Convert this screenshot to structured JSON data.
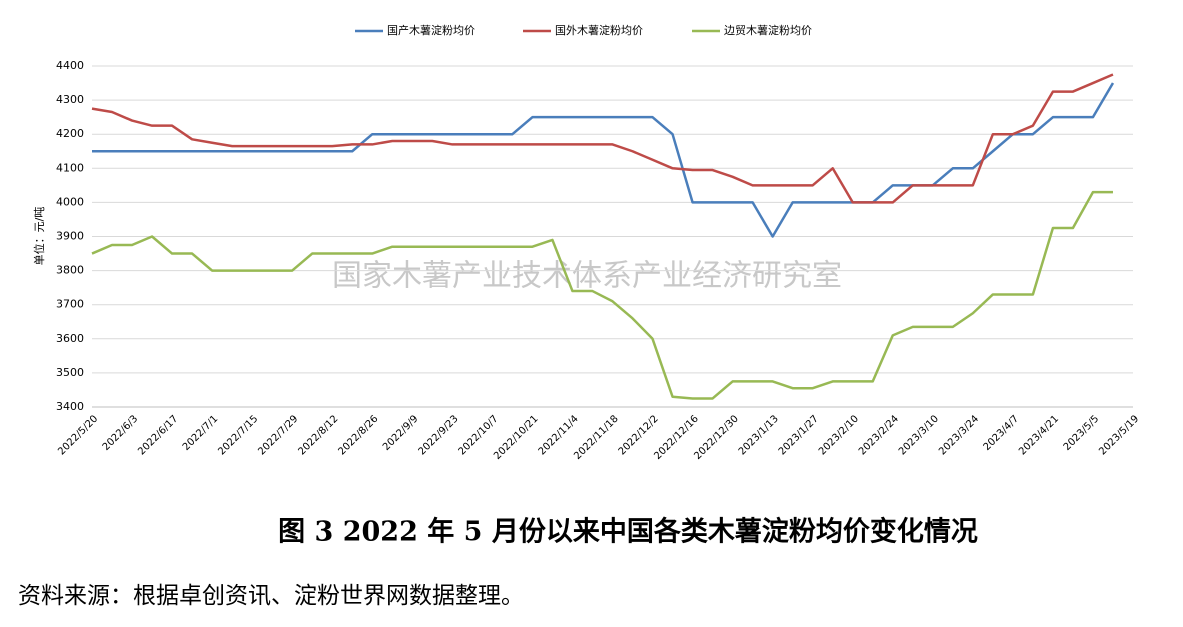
{
  "chart_data": {
    "type": "line",
    "ylabel": "单位：元/吨",
    "watermark": "国家木薯产业技术体系产业经济研究室",
    "caption": "图 3   2022 年 5 月份以来中国各类木薯淀粉均价变化情况",
    "source": "资料来源：根据卓创资讯、淀粉世界网数据整理。",
    "categories": [
      "2022/5/20",
      null,
      "2022/6/3",
      null,
      "2022/6/17",
      null,
      "2022/7/1",
      null,
      "2022/7/15",
      null,
      "2022/7/29",
      null,
      "2022/8/12",
      null,
      "2022/8/26",
      null,
      "2022/9/9",
      null,
      "2022/9/23",
      null,
      "2022/10/7",
      null,
      "2022/10/21",
      null,
      "2022/11/4",
      null,
      "2022/11/18",
      null,
      "2022/12/2",
      null,
      "2022/12/16",
      null,
      "2022/12/30",
      null,
      "2023/1/13",
      null,
      "2023/1/27",
      null,
      "2023/2/10",
      null,
      "2023/2/24",
      null,
      "2023/3/10",
      null,
      "2023/3/24",
      null,
      "2023/4/7",
      null,
      "2023/4/21",
      null,
      "2023/5/5",
      null,
      "2023/5/19"
    ],
    "series": [
      {
        "name": "国产木薯淀粉均价",
        "color": "#4a7ebb",
        "values": [
          4150,
          4150,
          4150,
          4150,
          4150,
          4150,
          4150,
          4150,
          4150,
          4150,
          4150,
          4150,
          4150,
          4150,
          4200,
          4200,
          4200,
          4200,
          4200,
          4200,
          4200,
          4200,
          4250,
          4250,
          4250,
          4250,
          4250,
          4250,
          4250,
          4200,
          4000,
          4000,
          4000,
          4000,
          3900,
          4000,
          4000,
          4000,
          4000,
          4000,
          4050,
          4050,
          4050,
          4100,
          4100,
          4150,
          4200,
          4200,
          4250,
          4250,
          4250,
          4350,
          null
        ]
      },
      {
        "name": "国外木薯淀粉均价",
        "color": "#be4b48",
        "values": [
          4275,
          4265,
          4240,
          4225,
          4225,
          4185,
          4175,
          4165,
          4165,
          4165,
          4165,
          4165,
          4165,
          4170,
          4170,
          4180,
          4180,
          4180,
          4170,
          4170,
          4170,
          4170,
          4170,
          4170,
          4170,
          4170,
          4170,
          4150,
          4125,
          4100,
          4095,
          4095,
          4075,
          4050,
          4050,
          4050,
          4050,
          4100,
          4000,
          4000,
          4000,
          4050,
          4050,
          4050,
          4050,
          4200,
          4200,
          4225,
          4325,
          4325,
          4350,
          4375,
          null
        ]
      },
      {
        "name": "边贸木薯淀粉均价",
        "color": "#98b954",
        "values": [
          3850,
          3875,
          3875,
          3900,
          3850,
          3850,
          3800,
          3800,
          3800,
          3800,
          3800,
          3850,
          3850,
          3850,
          3850,
          3870,
          3870,
          3870,
          3870,
          3870,
          3870,
          3870,
          3870,
          3890,
          3740,
          3740,
          3710,
          3660,
          3600,
          3430,
          3425,
          3425,
          3475,
          3475,
          3475,
          3455,
          3455,
          3475,
          3475,
          3475,
          3610,
          3635,
          3635,
          3635,
          3675,
          3730,
          3730,
          3730,
          3925,
          3925,
          4030,
          4030,
          null
        ]
      }
    ],
    "ylim": [
      3400,
      4400
    ],
    "yticks": [
      3400,
      3500,
      3600,
      3700,
      3800,
      3900,
      4000,
      4100,
      4200,
      4300,
      4400
    ],
    "grid": true
  }
}
